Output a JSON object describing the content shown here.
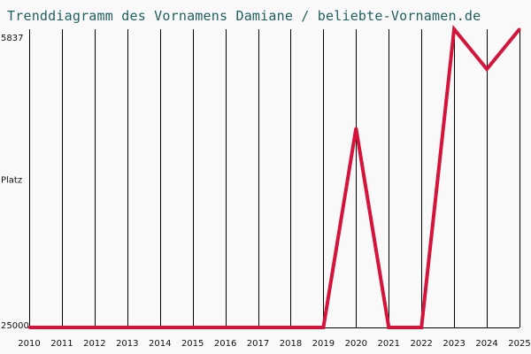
{
  "title": "Trenddiagramm des Vornamens Damiane / beliebte-Vornamen.de",
  "colors": {
    "background": "#f9f9f9",
    "title": "#1f5f5f",
    "line": "#d4143a",
    "grid": "#000000",
    "text": "#111111"
  },
  "chart_data": {
    "type": "line",
    "title": "Trenddiagramm des Vornamens Damiane / beliebte-Vornamen.de",
    "xlabel": "",
    "ylabel": "Platz",
    "y_tick_labels": [
      "5837",
      "25000"
    ],
    "ylim": [
      5837,
      25000
    ],
    "y_inverted": true,
    "grid": "vertical",
    "legend": "none",
    "x": [
      2010,
      2011,
      2012,
      2013,
      2014,
      2015,
      2016,
      2017,
      2018,
      2019,
      2020,
      2021,
      2022,
      2023,
      2024,
      2025
    ],
    "series": [
      {
        "values": [
          25000,
          25000,
          25000,
          25000,
          25000,
          25000,
          25000,
          25000,
          25000,
          25000,
          12200,
          25000,
          25000,
          5837,
          8400,
          5837
        ]
      }
    ]
  }
}
